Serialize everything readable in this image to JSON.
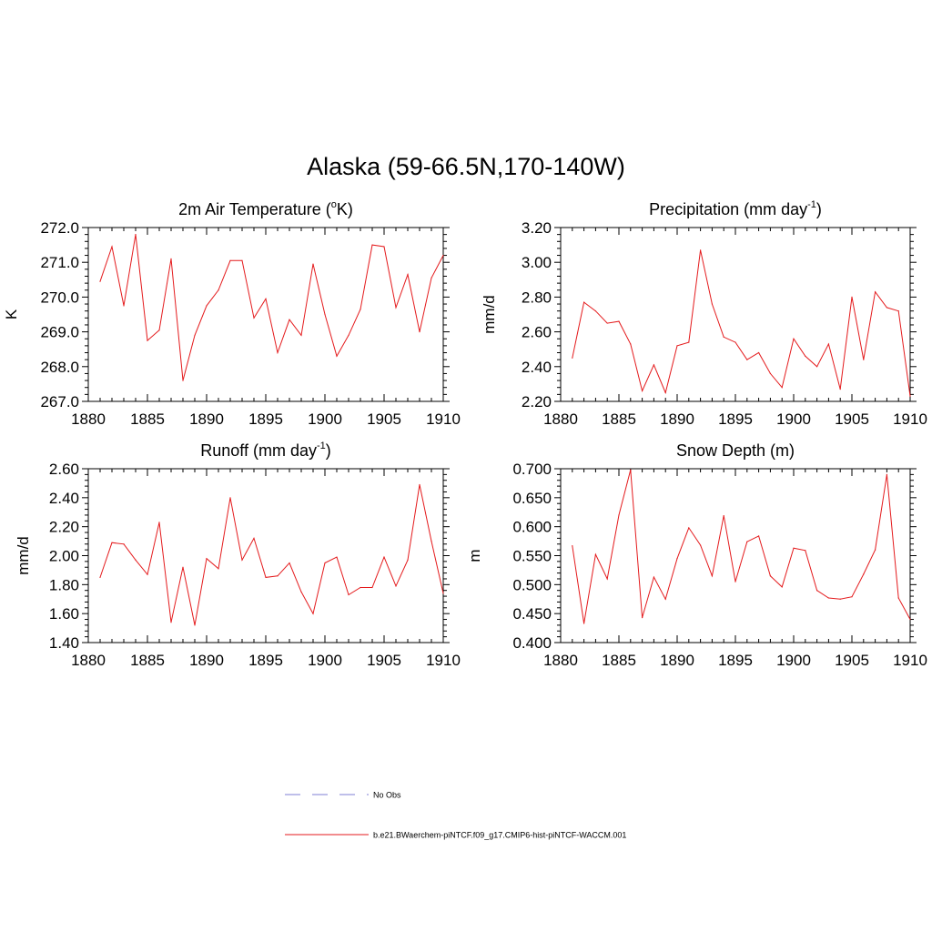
{
  "main_title": "Alaska (59-66.5N,170-140W)",
  "line_color": "#e41a1c",
  "obs_color": "#9999dd",
  "legend": [
    {
      "label": "No Obs",
      "style": "dashed"
    },
    {
      "label": "b.e21.BWaerchem-piNTCF.f09_g17.CMIP6-hist-piNTCF-WACCM.001",
      "style": "solid"
    }
  ],
  "chart_data": [
    {
      "type": "line",
      "title": "2m Air Temperature (",
      "title_sup": "o",
      "title_suffix": "K)",
      "ylabel": "K",
      "xlim": [
        1880,
        1910
      ],
      "ylim": [
        267.0,
        272.0
      ],
      "xticks": [
        "1880",
        "1885",
        "1890",
        "1895",
        "1900",
        "1905",
        "1910"
      ],
      "yticks": [
        "267.0",
        "268.0",
        "269.0",
        "270.0",
        "271.0",
        "272.0"
      ],
      "x": [
        1881,
        1882,
        1883,
        1884,
        1885,
        1886,
        1887,
        1888,
        1889,
        1890,
        1891,
        1892,
        1893,
        1894,
        1895,
        1896,
        1897,
        1898,
        1899,
        1900,
        1901,
        1902,
        1903,
        1904,
        1905,
        1906,
        1907,
        1908,
        1909,
        1910
      ],
      "values": [
        270.45,
        271.45,
        269.75,
        271.8,
        268.75,
        269.05,
        271.1,
        267.6,
        268.9,
        269.75,
        270.2,
        271.05,
        271.05,
        269.4,
        269.95,
        268.4,
        269.35,
        268.9,
        270.95,
        269.5,
        268.3,
        268.9,
        269.65,
        271.5,
        271.45,
        269.7,
        270.65,
        269.0,
        270.55,
        271.2
      ]
    },
    {
      "type": "line",
      "title": "Precipitation (mm day",
      "title_sup": "-1",
      "title_suffix": ")",
      "ylabel": "mm/d",
      "xlim": [
        1880,
        1910
      ],
      "ylim": [
        2.2,
        3.2
      ],
      "xticks": [
        "1880",
        "1885",
        "1890",
        "1895",
        "1900",
        "1905",
        "1910"
      ],
      "yticks": [
        "2.20",
        "2.40",
        "2.60",
        "2.80",
        "3.00",
        "3.20"
      ],
      "x": [
        1881,
        1882,
        1883,
        1884,
        1885,
        1886,
        1887,
        1888,
        1889,
        1890,
        1891,
        1892,
        1893,
        1894,
        1895,
        1896,
        1897,
        1898,
        1899,
        1900,
        1901,
        1902,
        1903,
        1904,
        1905,
        1906,
        1907,
        1908,
        1909,
        1910
      ],
      "values": [
        2.45,
        2.77,
        2.72,
        2.65,
        2.66,
        2.53,
        2.26,
        2.41,
        2.25,
        2.52,
        2.54,
        3.07,
        2.76,
        2.57,
        2.54,
        2.44,
        2.48,
        2.36,
        2.28,
        2.56,
        2.46,
        2.4,
        2.53,
        2.27,
        2.8,
        2.44,
        2.83,
        2.74,
        2.72,
        2.23
      ]
    },
    {
      "type": "line",
      "title": "Runoff (mm day",
      "title_sup": "-1",
      "title_suffix": ")",
      "ylabel": "mm/d",
      "xlim": [
        1880,
        1910
      ],
      "ylim": [
        1.4,
        2.6
      ],
      "xticks": [
        "1880",
        "1885",
        "1890",
        "1895",
        "1900",
        "1905",
        "1910"
      ],
      "yticks": [
        "1.40",
        "1.60",
        "1.80",
        "2.00",
        "2.20",
        "2.40",
        "2.60"
      ],
      "x": [
        1881,
        1882,
        1883,
        1884,
        1885,
        1886,
        1887,
        1888,
        1889,
        1890,
        1891,
        1892,
        1893,
        1894,
        1895,
        1896,
        1897,
        1898,
        1899,
        1900,
        1901,
        1902,
        1903,
        1904,
        1905,
        1906,
        1907,
        1908,
        1909,
        1910
      ],
      "values": [
        1.85,
        2.09,
        2.08,
        1.97,
        1.87,
        2.23,
        1.54,
        1.92,
        1.52,
        1.98,
        1.91,
        2.4,
        1.97,
        2.12,
        1.85,
        1.86,
        1.95,
        1.75,
        1.6,
        1.95,
        1.99,
        1.73,
        1.78,
        1.78,
        1.99,
        1.79,
        1.97,
        2.49,
        2.1,
        1.74
      ]
    },
    {
      "type": "line",
      "title": "Snow Depth (m)",
      "title_sup": "",
      "title_suffix": "",
      "ylabel": "m",
      "xlim": [
        1880,
        1910
      ],
      "ylim": [
        0.4,
        0.7
      ],
      "xticks": [
        "1880",
        "1885",
        "1890",
        "1895",
        "1900",
        "1905",
        "1910"
      ],
      "yticks": [
        "0.400",
        "0.450",
        "0.500",
        "0.550",
        "0.600",
        "0.650",
        "0.700"
      ],
      "x": [
        1881,
        1882,
        1883,
        1884,
        1885,
        1886,
        1887,
        1888,
        1889,
        1890,
        1891,
        1892,
        1893,
        1894,
        1895,
        1896,
        1897,
        1898,
        1899,
        1900,
        1901,
        1902,
        1903,
        1904,
        1905,
        1906,
        1907,
        1908,
        1909,
        1910
      ],
      "values": [
        0.567,
        0.433,
        0.552,
        0.51,
        0.62,
        0.698,
        0.443,
        0.513,
        0.475,
        0.545,
        0.598,
        0.568,
        0.515,
        0.619,
        0.505,
        0.574,
        0.584,
        0.515,
        0.496,
        0.563,
        0.559,
        0.49,
        0.477,
        0.475,
        0.479,
        0.518,
        0.56,
        0.69,
        0.477,
        0.44
      ]
    }
  ]
}
